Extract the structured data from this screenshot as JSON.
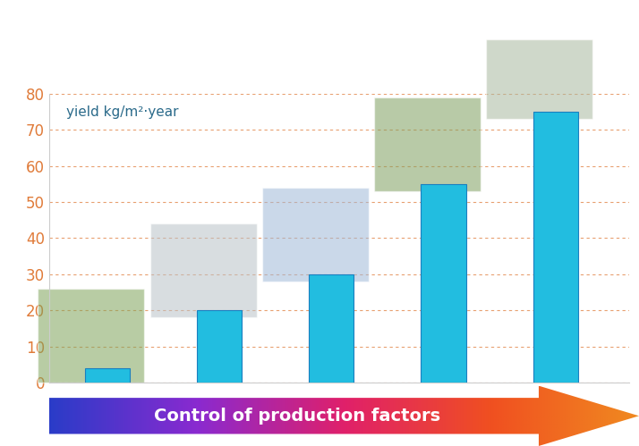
{
  "chart_data": {
    "type": "bar",
    "y_label": "yield kg/m²·year",
    "x_label": "Control of production factors",
    "categories": [
      null,
      null,
      null,
      null,
      null
    ],
    "values": [
      4,
      20,
      30,
      55,
      75
    ],
    "color": "#22bde0",
    "ylim": [
      0,
      80
    ],
    "yticks": [
      0,
      10,
      20,
      30,
      40,
      50,
      60,
      70,
      80
    ],
    "grid": true,
    "tick_labels": "y"
  }
}
